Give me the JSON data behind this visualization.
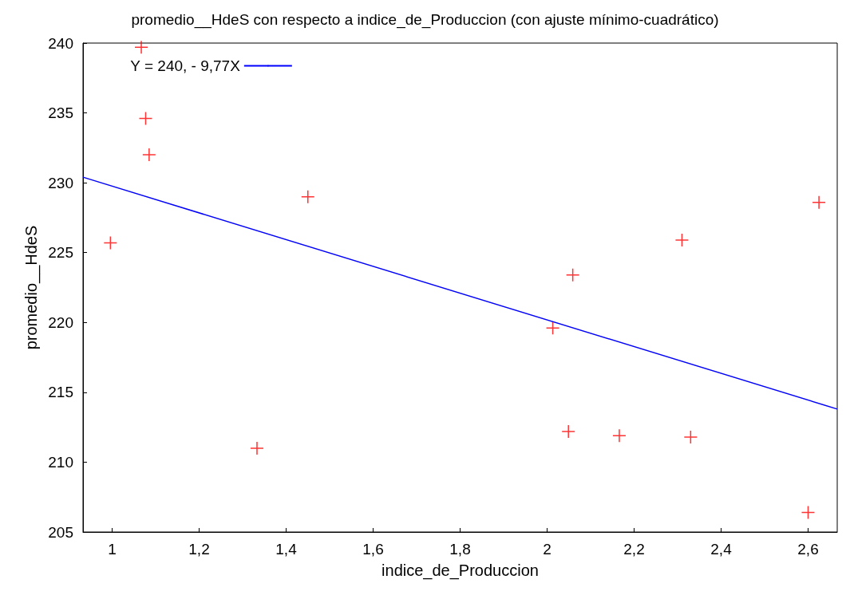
{
  "chart_data": {
    "type": "scatter",
    "title": "promedio__HdeS con respecto a indice_de_Produccion (con ajuste mínimo-cuadrático)",
    "xlabel": "indice_de_Produccion",
    "ylabel": "promedio__HdeS",
    "series": [
      {
        "color": "#ff0000",
        "marker": "cross",
        "x": [
          1.067,
          1.077,
          1.085,
          0.996,
          1.45,
          1.333,
          2.013,
          2.059,
          2.049,
          2.166,
          2.31,
          2.33,
          2.625,
          2.6
        ],
        "values": [
          239.7,
          234.6,
          232.0,
          225.7,
          229.0,
          211.0,
          219.6,
          223.4,
          212.2,
          211.9,
          225.9,
          211.8,
          228.6,
          206.4
        ]
      },
      {
        "type": "line",
        "name": "Y = 240, - 9,77X",
        "color": "#0000ff",
        "marker": "none",
        "x": [
          0.933,
          2.667
        ],
        "values": [
          230.4,
          213.8
        ]
      }
    ],
    "xlim": [
      0.933,
      2.667
    ],
    "xticks": [
      1,
      {
        "value": 1.2,
        "label": "1,2"
      },
      {
        "value": 1.4,
        "label": "1,4"
      },
      {
        "value": 1.6,
        "label": "1,6"
      },
      {
        "value": 1.8,
        "label": "1,8"
      },
      2,
      {
        "value": 2.2,
        "label": "2,2"
      },
      {
        "value": 2.4,
        "label": "2,4"
      },
      {
        "value": 2.6,
        "label": "2,6"
      }
    ],
    "ylim": [
      205,
      240
    ],
    "yticks": [
      205,
      210,
      215,
      220,
      225,
      230,
      235,
      240
    ],
    "grid": false,
    "legend": "top left"
  }
}
